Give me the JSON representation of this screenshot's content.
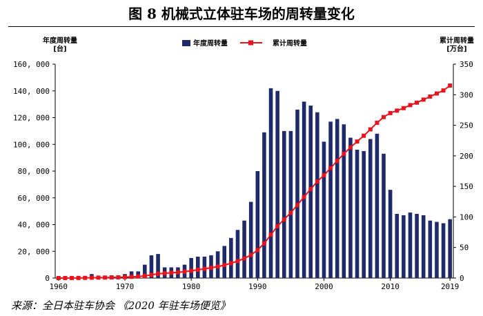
{
  "title": "图 8   机械式立体驻车场的周转量变化",
  "source": "来源：全日本驻车协会 《2020 年驻车场便览》",
  "chart_data": {
    "type": "bar+line",
    "title": "图 8   机械式立体驻车场的周转量变化",
    "left_axis_label_line1": "年度周转量",
    "left_axis_label_line2": "[台]",
    "right_axis_label_line1": "累计周转量",
    "right_axis_label_line2": "[万台]",
    "left_ylim": [
      0,
      160000
    ],
    "right_ylim": [
      0,
      350
    ],
    "xlim": [
      1960,
      2019
    ],
    "left_ticks": [
      "0",
      "20, 000",
      "40, 000",
      "60, 000",
      "80, 000",
      "100, 000",
      "120, 000",
      "140, 000",
      "160, 000"
    ],
    "right_ticks": [
      "0",
      "50",
      "100",
      "150",
      "200",
      "250",
      "300",
      "350"
    ],
    "x_ticks": [
      "1960",
      "1970",
      "1980",
      "1990",
      "2000",
      "2010",
      "2019"
    ],
    "legend_position": "top-center",
    "bar_color": "#1f2a6b",
    "line_color": "#e6141e",
    "series": [
      {
        "name": "年度周转量",
        "axis": "left",
        "x": [
          1960,
          1961,
          1962,
          1963,
          1964,
          1965,
          1966,
          1967,
          1968,
          1969,
          1970,
          1971,
          1972,
          1973,
          1974,
          1975,
          1976,
          1977,
          1978,
          1979,
          1980,
          1981,
          1982,
          1983,
          1984,
          1985,
          1986,
          1987,
          1988,
          1989,
          1990,
          1991,
          1992,
          1993,
          1994,
          1995,
          1996,
          1997,
          1998,
          1999,
          2000,
          2001,
          2002,
          2003,
          2004,
          2005,
          2006,
          2007,
          2008,
          2009,
          2010,
          2011,
          2012,
          2013,
          2014,
          2015,
          2016,
          2017,
          2018,
          2019
        ],
        "values": [
          200,
          300,
          500,
          800,
          1000,
          3000,
          1000,
          1000,
          2000,
          2000,
          3000,
          5000,
          5000,
          10000,
          17000,
          18000,
          8000,
          8000,
          8000,
          10000,
          15000,
          16000,
          16000,
          17000,
          20000,
          24000,
          30000,
          36000,
          43000,
          57000,
          80000,
          109000,
          142000,
          140000,
          110000,
          110000,
          126000,
          132000,
          129000,
          124000,
          102000,
          117000,
          119000,
          115000,
          105000,
          96000,
          95000,
          104000,
          108000,
          93000,
          66000,
          48000,
          47000,
          49000,
          48000,
          47000,
          43000,
          42000,
          41000,
          44000
        ]
      },
      {
        "name": "累计周转量",
        "axis": "right",
        "x": [
          1960,
          1961,
          1962,
          1963,
          1964,
          1965,
          1966,
          1967,
          1968,
          1969,
          1970,
          1971,
          1972,
          1973,
          1974,
          1975,
          1976,
          1977,
          1978,
          1979,
          1980,
          1981,
          1982,
          1983,
          1984,
          1985,
          1986,
          1987,
          1988,
          1989,
          1990,
          1991,
          1992,
          1993,
          1994,
          1995,
          1996,
          1997,
          1998,
          1999,
          2000,
          2001,
          2002,
          2003,
          2004,
          2005,
          2006,
          2007,
          2008,
          2009,
          2010,
          2011,
          2012,
          2013,
          2014,
          2015,
          2016,
          2017,
          2018,
          2019
        ],
        "values": [
          0.02,
          0.05,
          0.1,
          0.2,
          0.3,
          0.6,
          0.7,
          0.8,
          1.0,
          1.2,
          1.5,
          2.0,
          2.5,
          3.5,
          5.2,
          7.0,
          7.8,
          8.6,
          9.4,
          10.4,
          11.9,
          13.5,
          15.1,
          16.8,
          18.8,
          21.2,
          24.2,
          27.8,
          32.1,
          37.8,
          45.8,
          56.7,
          70.9,
          84.9,
          95.9,
          106.9,
          119.5,
          132.7,
          145.6,
          158.0,
          168.2,
          179.9,
          191.8,
          203.3,
          213.8,
          223.4,
          232.9,
          243.3,
          254.1,
          263.4,
          270,
          274,
          278,
          283,
          287,
          292,
          297,
          302,
          307,
          315
        ]
      }
    ]
  }
}
